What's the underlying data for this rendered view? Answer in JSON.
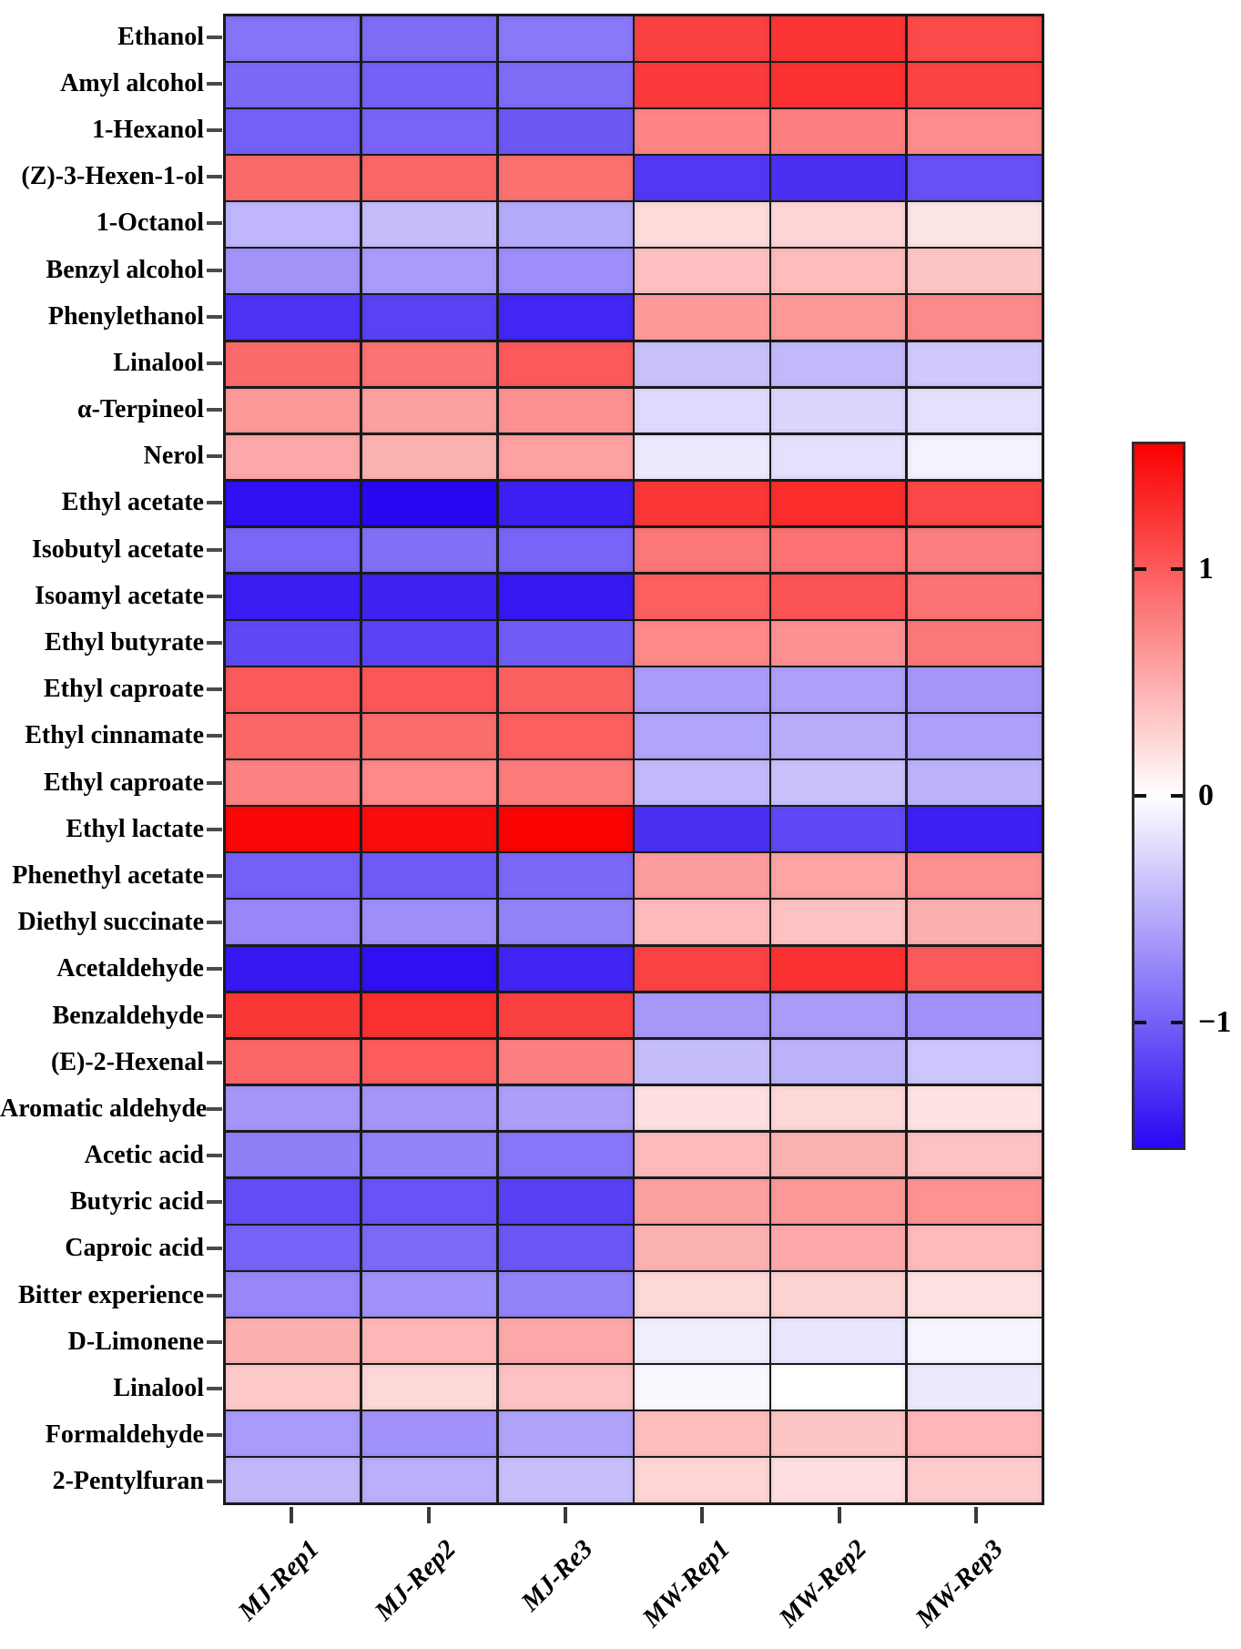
{
  "figure": {
    "background": "#ffffff"
  },
  "chart_data": {
    "type": "heatmap",
    "title": "",
    "xlabel": "",
    "ylabel": "",
    "rows": [
      "Ethanol",
      "Amyl alcohol",
      "1-Hexanol",
      "(Z)-3-Hexen-1-ol",
      "1-Octanol",
      "Benzyl alcohol",
      "Phenylethanol",
      "Linalool",
      "α-Terpineol",
      "Nerol",
      "Ethyl acetate",
      "Isobutyl acetate",
      "Isoamyl acetate",
      "Ethyl butyrate",
      "Ethyl caproate",
      "Ethyl cinnamate",
      "Ethyl caproate",
      "Ethyl lactate",
      "Phenethyl acetate",
      "Diethyl succinate",
      "Acetaldehyde",
      "Benzaldehyde",
      "(E)-2-Hexenal",
      "Aromatic aldehyde",
      "Acetic acid",
      "Butyric acid",
      "Caproic acid",
      "Bitter experience",
      "D-Limonene",
      "Linalool",
      "Formaldehyde",
      "2-Pentylfuran"
    ],
    "columns": [
      "MJ-Rep1",
      "MJ-Rep2",
      "MJ-Re3",
      "MW-Rep1",
      "MW-Rep2",
      "MW-Rep3"
    ],
    "values": [
      [
        -0.88,
        -0.92,
        -0.85,
        1.16,
        1.23,
        1.1
      ],
      [
        -0.95,
        -0.99,
        -0.92,
        1.19,
        1.25,
        1.14
      ],
      [
        -1.0,
        -0.97,
        -1.05,
        0.74,
        0.77,
        0.69
      ],
      [
        0.9,
        0.93,
        0.87,
        -1.25,
        -1.3,
        -1.1
      ],
      [
        -0.46,
        -0.41,
        -0.53,
        0.21,
        0.25,
        0.16
      ],
      [
        -0.67,
        -0.62,
        -0.71,
        0.38,
        0.41,
        0.35
      ],
      [
        -1.28,
        -1.19,
        -1.36,
        0.61,
        0.62,
        0.71
      ],
      [
        0.9,
        0.85,
        1.0,
        -0.39,
        -0.44,
        -0.34
      ],
      [
        0.62,
        0.58,
        0.67,
        -0.23,
        -0.26,
        -0.19
      ],
      [
        0.53,
        0.47,
        0.57,
        -0.13,
        -0.19,
        -0.08
      ],
      [
        -1.5,
        -1.55,
        -1.4,
        1.22,
        1.28,
        1.12
      ],
      [
        -0.96,
        -0.9,
        -0.97,
        0.82,
        0.86,
        0.78
      ],
      [
        -1.42,
        -1.38,
        -1.45,
        0.97,
        1.04,
        0.85
      ],
      [
        -1.15,
        -1.18,
        -1.02,
        0.72,
        0.67,
        0.82
      ],
      [
        1.0,
        1.03,
        0.96,
        -0.62,
        -0.59,
        -0.65
      ],
      [
        0.92,
        0.89,
        0.97,
        -0.56,
        -0.51,
        -0.59
      ],
      [
        0.76,
        0.72,
        0.8,
        -0.44,
        -0.38,
        -0.48
      ],
      [
        1.5,
        1.47,
        1.53,
        -1.3,
        -1.15,
        -1.4
      ],
      [
        -1.0,
        -1.03,
        -0.95,
        0.6,
        0.55,
        0.68
      ],
      [
        -0.75,
        -0.7,
        -0.78,
        0.42,
        0.37,
        0.48
      ],
      [
        -1.45,
        -1.5,
        -1.37,
        1.15,
        1.25,
        1.0
      ],
      [
        1.21,
        1.26,
        1.16,
        -0.64,
        -0.62,
        -0.68
      ],
      [
        0.93,
        0.99,
        0.77,
        -0.41,
        -0.48,
        -0.36
      ],
      [
        -0.65,
        -0.65,
        -0.6,
        0.19,
        0.24,
        0.17
      ],
      [
        -0.8,
        -0.77,
        -0.86,
        0.42,
        0.47,
        0.37
      ],
      [
        -1.12,
        -1.08,
        -1.2,
        0.58,
        0.62,
        0.66
      ],
      [
        -0.98,
        -0.94,
        -1.06,
        0.47,
        0.52,
        0.42
      ],
      [
        -0.75,
        -0.68,
        -0.78,
        0.24,
        0.27,
        0.18
      ],
      [
        0.48,
        0.44,
        0.53,
        -0.1,
        -0.16,
        -0.06
      ],
      [
        0.33,
        0.24,
        0.37,
        -0.04,
        0.0,
        -0.13
      ],
      [
        -0.63,
        -0.68,
        -0.57,
        0.4,
        0.35,
        0.44
      ],
      [
        -0.45,
        -0.5,
        -0.4,
        0.26,
        0.2,
        0.31
      ]
    ],
    "value_range": [
      -1.55,
      1.55
    ],
    "colorbar": {
      "tick_labels": [
        "1",
        "0",
        "−1"
      ],
      "tick_values": [
        1,
        0,
        -1
      ],
      "position": "right"
    },
    "colors": {
      "positive_max": "#fa0000",
      "zero": "#ffffff",
      "negative_max": "#2808f2",
      "gridline": "#1a1a1a",
      "axis_tick": "#4a4a4a"
    },
    "grid_on": true,
    "legend_position": "right"
  }
}
